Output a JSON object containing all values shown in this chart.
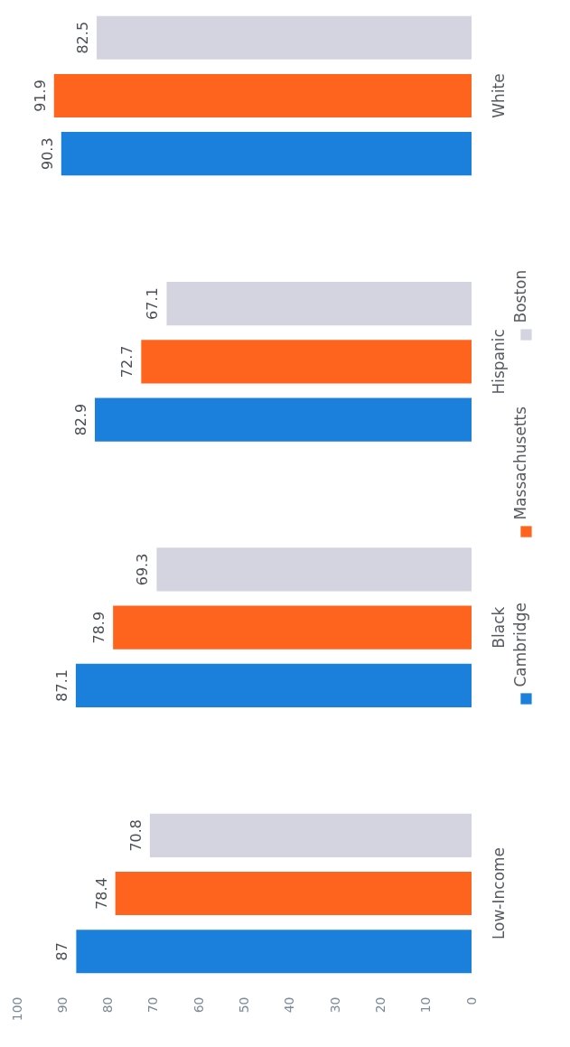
{
  "chart_data": {
    "type": "bar",
    "orientation": "horizontal",
    "categories": [
      "White",
      "Hispanic",
      "Black",
      "Low-Income"
    ],
    "series": [
      {
        "name": "Boston",
        "color": "#d3d4e0",
        "values": [
          82.5,
          67.1,
          69.3,
          70.8
        ]
      },
      {
        "name": "Massachusetts",
        "color": "#ff641e",
        "values": [
          91.9,
          72.7,
          78.9,
          78.4
        ]
      },
      {
        "name": "Cambridge",
        "color": "#1a80dc",
        "values": [
          90.3,
          82.9,
          87.1,
          87
        ]
      }
    ],
    "xlim": [
      100,
      0
    ],
    "xticks": [
      100,
      90,
      80,
      70,
      60,
      50,
      40,
      30,
      20,
      10,
      0
    ],
    "data_labels": true,
    "grid": false,
    "legend": "right"
  }
}
